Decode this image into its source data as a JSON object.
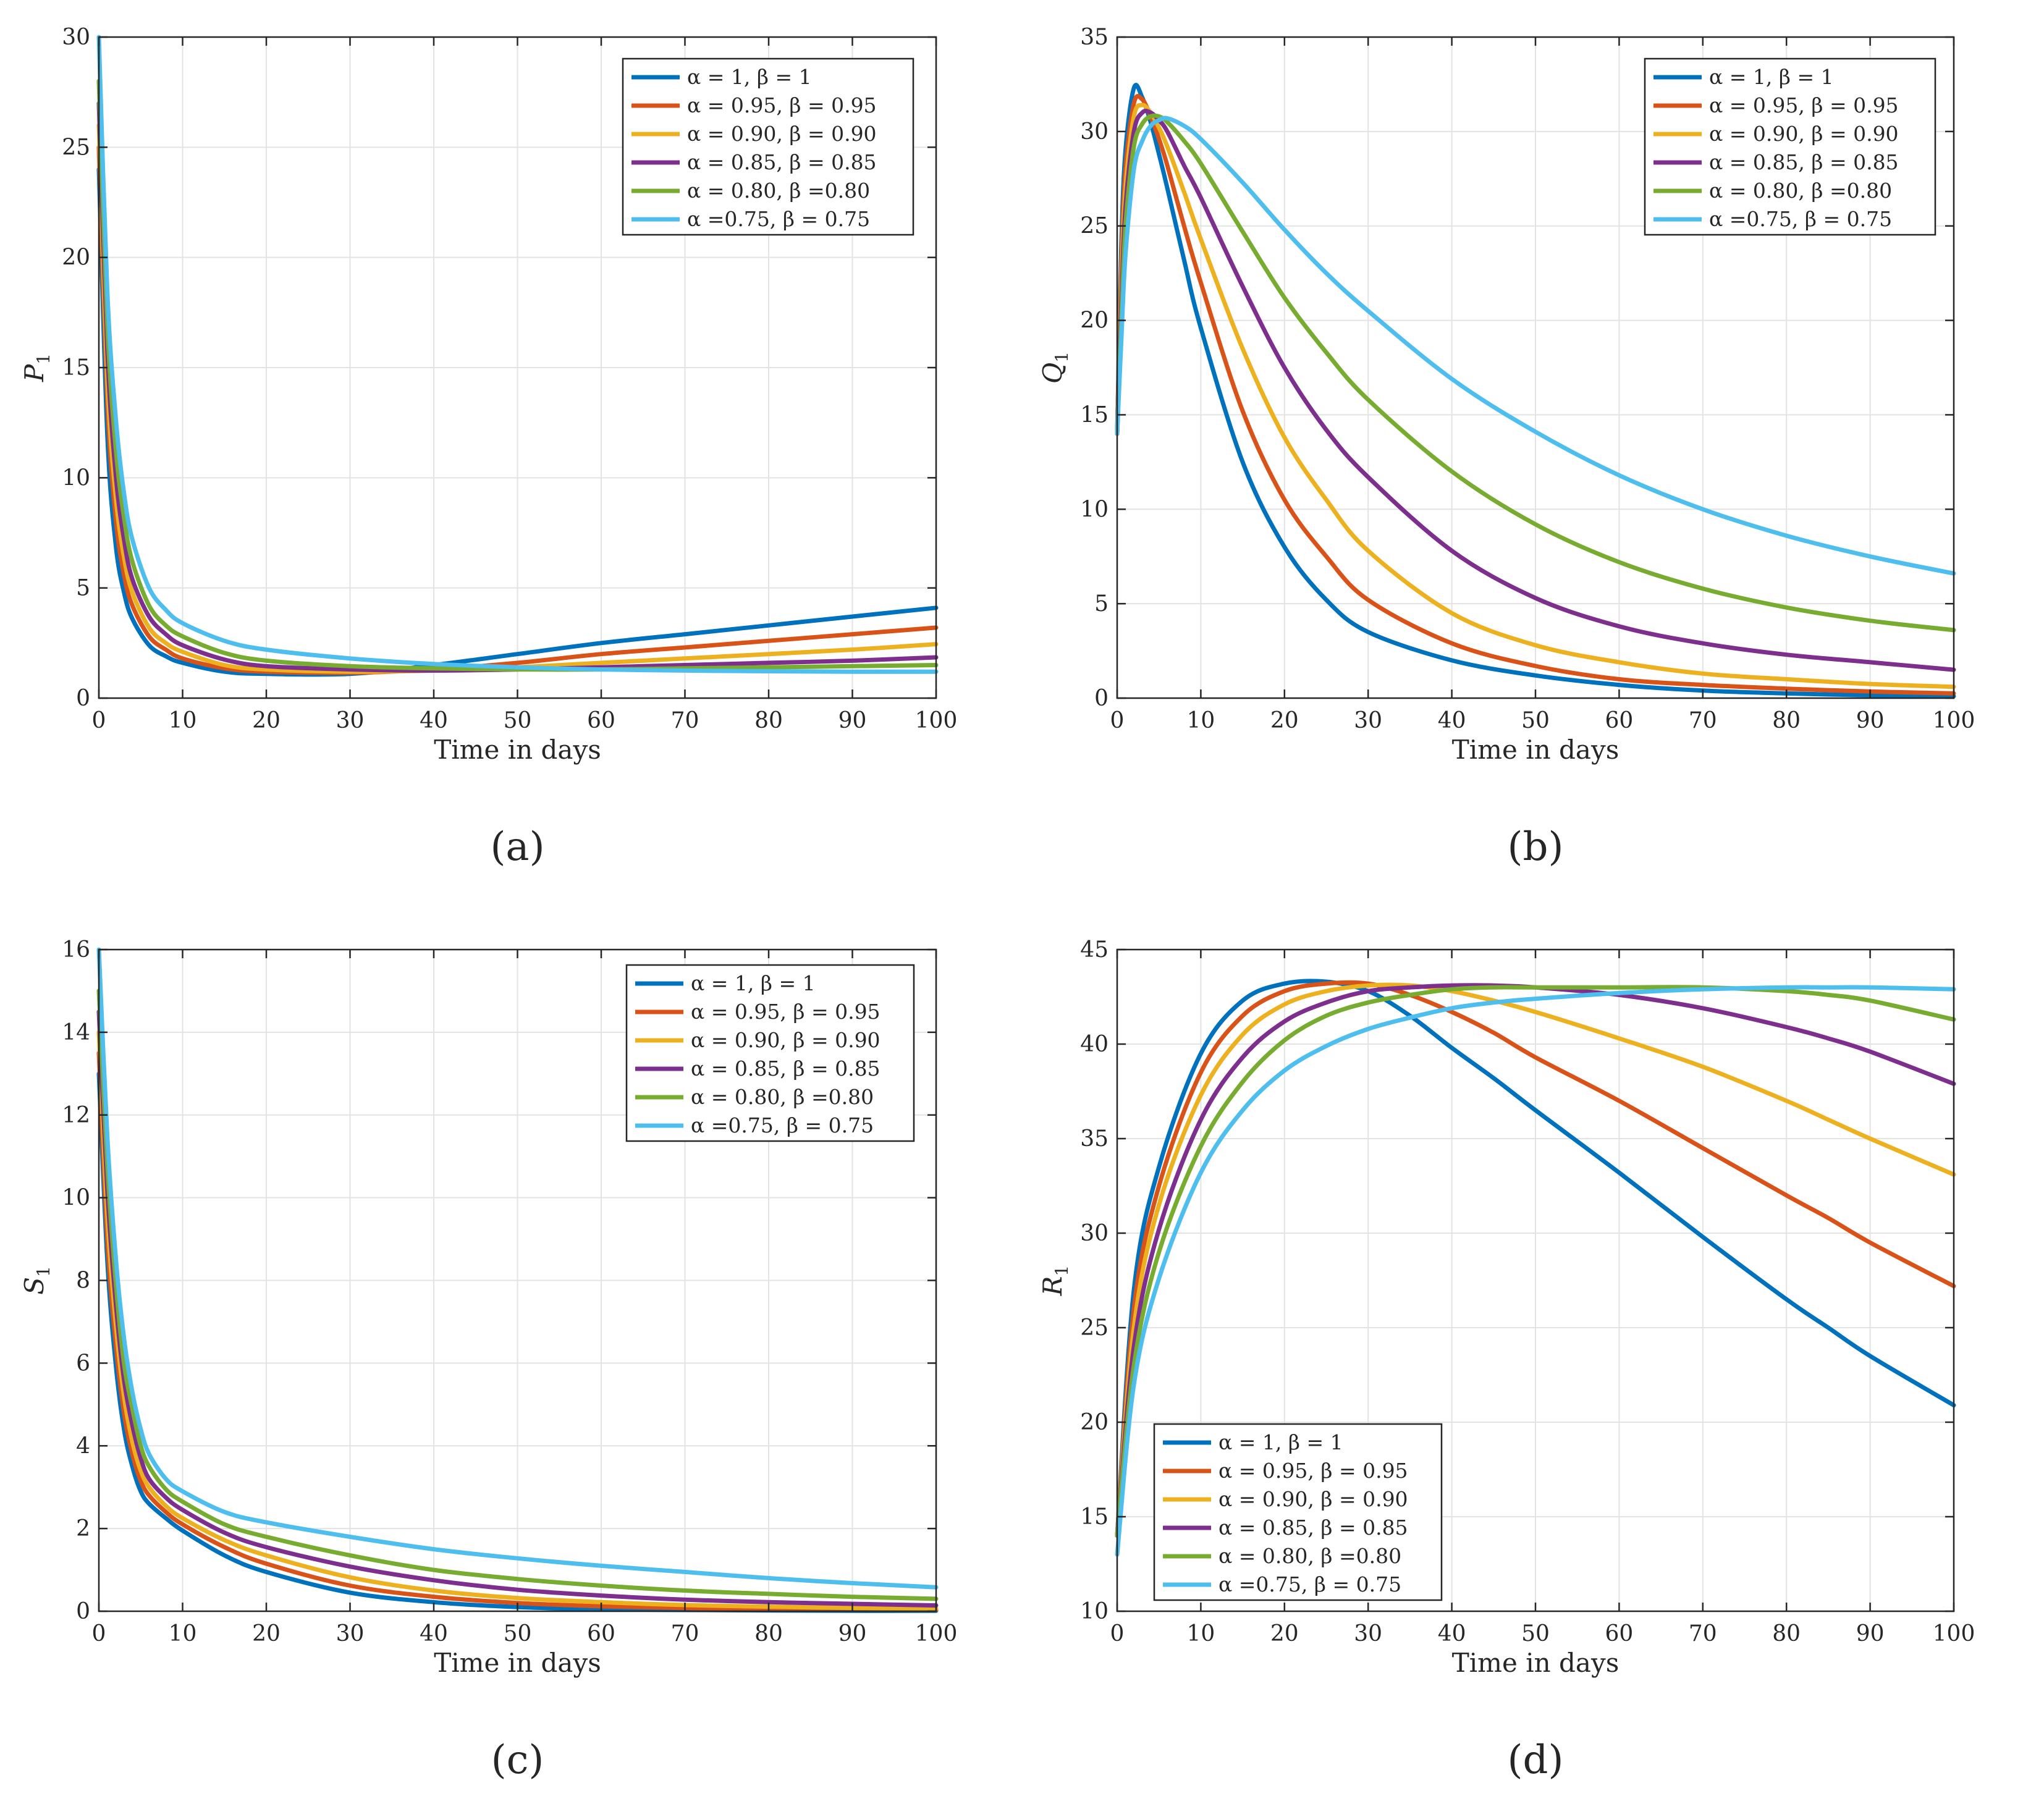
{
  "chart_data": [
    {
      "type": "line",
      "panel": "(a)",
      "xlabel": "Time in days",
      "ylabel": "P",
      "ylabel_sub": "1",
      "xlim": [
        0,
        100
      ],
      "ylim": [
        0,
        30
      ],
      "xticks": [
        0,
        10,
        20,
        30,
        40,
        50,
        60,
        70,
        80,
        90,
        100
      ],
      "yticks": [
        0,
        5,
        10,
        15,
        20,
        25,
        30
      ],
      "grid": true,
      "legend_position": "top-right",
      "x": [
        0,
        1,
        2,
        3,
        4,
        6,
        8,
        10,
        15,
        20,
        30,
        40,
        50,
        60,
        70,
        80,
        90,
        100
      ],
      "series": [
        {
          "name": "α = 1, β = 1",
          "color": "#0072BD",
          "values": [
            24,
            12,
            7,
            4.8,
            3.6,
            2.4,
            1.9,
            1.6,
            1.2,
            1.1,
            1.1,
            1.5,
            2.0,
            2.5,
            2.9,
            3.3,
            3.7,
            4.1
          ]
        },
        {
          "name": "α = 0.95, β = 0.95",
          "color": "#D95319",
          "values": [
            25,
            13.5,
            8.2,
            5.6,
            4.2,
            2.8,
            2.2,
            1.8,
            1.35,
            1.2,
            1.15,
            1.3,
            1.6,
            2.0,
            2.3,
            2.6,
            2.9,
            3.2
          ]
        },
        {
          "name": "α = 0.90, β = 0.90",
          "color": "#EDB120",
          "values": [
            26,
            14.5,
            9.2,
            6.4,
            4.8,
            3.2,
            2.5,
            2.1,
            1.5,
            1.3,
            1.2,
            1.25,
            1.4,
            1.6,
            1.8,
            2.0,
            2.2,
            2.45
          ]
        },
        {
          "name": "α = 0.85, β = 0.85",
          "color": "#7E2F8E",
          "values": [
            27,
            15.8,
            10.2,
            7.2,
            5.4,
            3.7,
            2.9,
            2.4,
            1.75,
            1.45,
            1.3,
            1.25,
            1.3,
            1.4,
            1.5,
            1.6,
            1.7,
            1.85
          ]
        },
        {
          "name": "α = 0.80, β =0.80",
          "color": "#77AC30",
          "values": [
            28,
            17,
            11.4,
            8.2,
            6.2,
            4.2,
            3.3,
            2.8,
            2.05,
            1.7,
            1.45,
            1.35,
            1.3,
            1.3,
            1.35,
            1.4,
            1.45,
            1.5
          ]
        },
        {
          "name": "α =0.75, β = 0.75",
          "color": "#4DBEEE",
          "values": [
            30,
            18.5,
            12.8,
            9.3,
            7.2,
            5.0,
            4.0,
            3.4,
            2.6,
            2.2,
            1.8,
            1.55,
            1.4,
            1.3,
            1.25,
            1.22,
            1.2,
            1.2
          ]
        }
      ]
    },
    {
      "type": "line",
      "panel": "(b)",
      "xlabel": "Time in days",
      "ylabel": "Q",
      "ylabel_sub": "1",
      "xlim": [
        0,
        100
      ],
      "ylim": [
        0,
        35
      ],
      "xticks": [
        0,
        10,
        20,
        30,
        40,
        50,
        60,
        70,
        80,
        90,
        100
      ],
      "yticks": [
        0,
        5,
        10,
        15,
        20,
        25,
        30,
        35
      ],
      "grid": true,
      "legend_position": "top-right",
      "x": [
        0,
        0.5,
        1,
        2,
        3,
        4,
        5,
        6,
        8,
        10,
        15,
        20,
        25,
        30,
        40,
        50,
        60,
        70,
        80,
        90,
        100
      ],
      "series": [
        {
          "name": "α = 1, β = 1",
          "color": "#0072BD",
          "values": [
            14,
            24,
            29,
            32.3,
            31.8,
            30.5,
            28.8,
            27,
            23.2,
            19.6,
            12.5,
            8.0,
            5.2,
            3.5,
            2.0,
            1.2,
            0.7,
            0.4,
            0.25,
            0.15,
            0.1
          ]
        },
        {
          "name": "α = 0.95, β = 0.95",
          "color": "#D95319",
          "values": [
            14,
            23,
            28,
            31.5,
            31.7,
            30.8,
            29.6,
            28.2,
            25,
            22,
            15.2,
            10.5,
            7.5,
            5.2,
            2.9,
            1.7,
            1.0,
            0.7,
            0.5,
            0.35,
            0.25
          ]
        },
        {
          "name": "α = 0.90, β = 0.90",
          "color": "#EDB120",
          "values": [
            14,
            22,
            27,
            30.8,
            31.4,
            31,
            30.2,
            29.2,
            26.8,
            24.3,
            18.5,
            13.8,
            10.5,
            7.8,
            4.5,
            2.8,
            1.9,
            1.3,
            1.0,
            0.75,
            0.6
          ]
        },
        {
          "name": "α = 0.85, β = 0.85",
          "color": "#7E2F8E",
          "values": [
            14,
            21,
            26,
            30,
            31,
            31,
            30.6,
            30,
            28.2,
            26.5,
            21.8,
            17.5,
            14.2,
            11.7,
            7.8,
            5.3,
            3.8,
            2.9,
            2.3,
            1.9,
            1.5
          ]
        },
        {
          "name": "α = 0.80, β =0.80",
          "color": "#77AC30",
          "values": [
            14,
            20,
            25,
            29.2,
            30.4,
            30.8,
            30.8,
            30.5,
            29.5,
            28.3,
            24.7,
            21.2,
            18.3,
            15.8,
            12.0,
            9.2,
            7.2,
            5.8,
            4.8,
            4.1,
            3.6
          ]
        },
        {
          "name": "α =0.75, β = 0.75",
          "color": "#4DBEEE",
          "values": [
            14,
            19,
            23.5,
            28,
            29.5,
            30.3,
            30.6,
            30.7,
            30.3,
            29.6,
            27.3,
            24.8,
            22.5,
            20.5,
            16.9,
            14.1,
            11.8,
            10.0,
            8.6,
            7.5,
            6.6
          ]
        }
      ]
    },
    {
      "type": "line",
      "panel": "(c)",
      "xlabel": "Time in days",
      "ylabel": "S",
      "ylabel_sub": "1",
      "xlim": [
        0,
        100
      ],
      "ylim": [
        0,
        16
      ],
      "xticks": [
        0,
        10,
        20,
        30,
        40,
        50,
        60,
        70,
        80,
        90,
        100
      ],
      "yticks": [
        0,
        2,
        4,
        6,
        8,
        10,
        12,
        14,
        16
      ],
      "grid": true,
      "legend_position": "top-right",
      "x": [
        0,
        1,
        2,
        3,
        4,
        5,
        6,
        8,
        10,
        15,
        20,
        30,
        40,
        50,
        60,
        70,
        80,
        90,
        100
      ],
      "series": [
        {
          "name": "α = 1, β = 1",
          "color": "#0072BD",
          "values": [
            13,
            8.5,
            6.0,
            4.4,
            3.5,
            2.9,
            2.6,
            2.25,
            1.95,
            1.35,
            0.95,
            0.45,
            0.22,
            0.1,
            0.05,
            0.03,
            0.02,
            0.01,
            0.01
          ]
        },
        {
          "name": "α = 0.95, β = 0.95",
          "color": "#D95319",
          "values": [
            13.5,
            9.0,
            6.5,
            4.8,
            3.8,
            3.15,
            2.8,
            2.4,
            2.1,
            1.55,
            1.15,
            0.62,
            0.35,
            0.2,
            0.12,
            0.08,
            0.05,
            0.04,
            0.03
          ]
        },
        {
          "name": "α = 0.90, β = 0.90",
          "color": "#EDB120",
          "values": [
            14,
            9.6,
            7.0,
            5.2,
            4.1,
            3.4,
            3.0,
            2.55,
            2.25,
            1.72,
            1.35,
            0.82,
            0.5,
            0.32,
            0.22,
            0.15,
            0.11,
            0.08,
            0.06
          ]
        },
        {
          "name": "α = 0.85, β = 0.85",
          "color": "#7E2F8E",
          "values": [
            14.5,
            10.2,
            7.5,
            5.6,
            4.5,
            3.7,
            3.2,
            2.75,
            2.45,
            1.9,
            1.55,
            1.08,
            0.75,
            0.52,
            0.38,
            0.28,
            0.22,
            0.18,
            0.14
          ]
        },
        {
          "name": "α = 0.80, β =0.80",
          "color": "#77AC30",
          "values": [
            15,
            10.8,
            8.0,
            6.0,
            4.9,
            4.0,
            3.5,
            2.95,
            2.65,
            2.1,
            1.8,
            1.35,
            1.0,
            0.78,
            0.62,
            0.5,
            0.42,
            0.35,
            0.3
          ]
        },
        {
          "name": "α =0.75, β = 0.75",
          "color": "#4DBEEE",
          "values": [
            16,
            11.5,
            8.6,
            6.6,
            5.3,
            4.4,
            3.8,
            3.2,
            2.9,
            2.4,
            2.15,
            1.8,
            1.5,
            1.28,
            1.1,
            0.95,
            0.8,
            0.68,
            0.58
          ]
        }
      ]
    },
    {
      "type": "line",
      "panel": "(d)",
      "xlabel": "Time in days",
      "ylabel": "R",
      "ylabel_sub": "1",
      "xlim": [
        0,
        100
      ],
      "ylim": [
        10,
        45
      ],
      "xticks": [
        0,
        10,
        20,
        30,
        40,
        50,
        60,
        70,
        80,
        90,
        100
      ],
      "yticks": [
        10,
        15,
        20,
        25,
        30,
        35,
        40,
        45
      ],
      "grid": true,
      "legend_position": "bottom-left",
      "x": [
        0,
        2,
        5,
        10,
        15,
        20,
        25,
        30,
        35,
        40,
        45,
        50,
        60,
        70,
        80,
        85,
        90,
        100
      ],
      "series": [
        {
          "name": "α = 1, β = 1",
          "color": "#0072BD",
          "values": [
            14,
            27,
            33.5,
            39.5,
            42.3,
            43.2,
            43.3,
            42.8,
            41.5,
            39.8,
            38.2,
            36.5,
            33.2,
            29.8,
            26.5,
            25.0,
            23.5,
            20.9
          ]
        },
        {
          "name": "α = 0.95, β = 0.95",
          "color": "#D95319",
          "values": [
            14,
            26,
            32.5,
            38.5,
            41.5,
            42.8,
            43.2,
            43.2,
            42.6,
            41.7,
            40.6,
            39.3,
            37.0,
            34.5,
            32.0,
            30.8,
            29.5,
            27.2
          ]
        },
        {
          "name": "α = 0.90, β = 0.90",
          "color": "#EDB120",
          "values": [
            14,
            25,
            31.5,
            37.3,
            40.5,
            42.1,
            42.8,
            43.1,
            43.1,
            42.8,
            42.3,
            41.7,
            40.3,
            38.8,
            37.0,
            36.0,
            35.0,
            33.1
          ]
        },
        {
          "name": "α = 0.85, β = 0.85",
          "color": "#7E2F8E",
          "values": [
            14,
            24,
            30.2,
            36,
            39.3,
            41.2,
            42.2,
            42.8,
            43.0,
            43.1,
            43.1,
            43.0,
            42.6,
            41.9,
            40.9,
            40.3,
            39.6,
            37.9
          ]
        },
        {
          "name": "α = 0.80, β =0.80",
          "color": "#77AC30",
          "values": [
            14,
            23,
            29,
            34.6,
            38,
            40.2,
            41.5,
            42.2,
            42.6,
            42.9,
            43.0,
            43.0,
            43.0,
            43.0,
            42.8,
            42.6,
            42.3,
            41.3
          ]
        },
        {
          "name": "α =0.75, β = 0.75",
          "color": "#4DBEEE",
          "values": [
            13,
            22,
            27.6,
            33.2,
            36.5,
            38.6,
            39.9,
            40.8,
            41.4,
            41.9,
            42.2,
            42.4,
            42.7,
            42.9,
            43.0,
            43.0,
            43.0,
            42.9
          ]
        }
      ]
    }
  ]
}
